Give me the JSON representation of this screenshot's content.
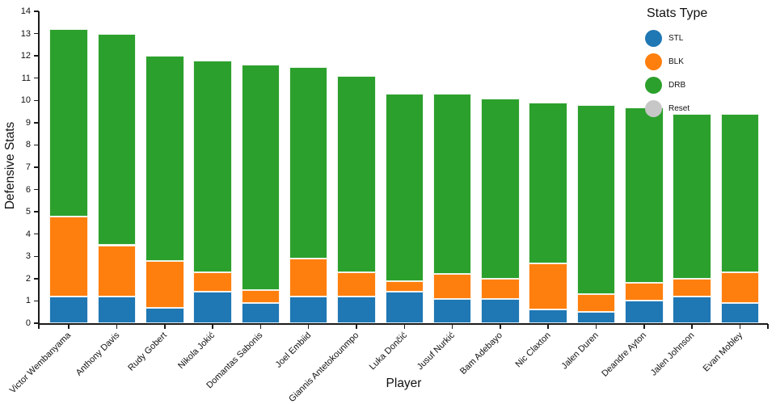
{
  "chart_data": {
    "type": "bar",
    "stacked": true,
    "title": "",
    "xlabel": "Player",
    "ylabel": "Defensive Stats",
    "ylim": [
      0,
      14
    ],
    "ytick_step": 1,
    "grid": false,
    "categories": [
      "Victor Wembanyama",
      "Anthony Davis",
      "Rudy Gobert",
      "Nikola Jokić",
      "Domantas Sabonis",
      "Joel Embiid",
      "Giannis Antetokounmpo",
      "Luka Dončić",
      "Jusuf Nurkić",
      "Bam Adebayo",
      "Nic Claxton",
      "Jalen Duren",
      "Deandre Ayton",
      "Jalen Johnson",
      "Evan Mobley"
    ],
    "series": [
      {
        "name": "STL",
        "color": "#1f77b4",
        "values": [
          1.2,
          1.2,
          0.7,
          1.4,
          0.9,
          1.2,
          1.2,
          1.4,
          1.1,
          1.1,
          0.6,
          0.5,
          1.0,
          1.2,
          0.9
        ]
      },
      {
        "name": "BLK",
        "color": "#ff7f0e",
        "values": [
          3.6,
          2.3,
          2.1,
          0.9,
          0.6,
          1.7,
          1.1,
          0.5,
          1.1,
          0.9,
          2.1,
          0.8,
          0.8,
          0.8,
          1.4
        ]
      },
      {
        "name": "DRB",
        "color": "#2ca02c",
        "values": [
          8.4,
          9.5,
          9.2,
          9.5,
          10.1,
          8.6,
          8.8,
          8.4,
          8.1,
          8.1,
          7.2,
          8.5,
          7.9,
          7.4,
          7.1
        ]
      }
    ],
    "totals": [
      13.2,
      13.0,
      12.0,
      11.8,
      11.6,
      11.5,
      11.1,
      10.3,
      10.3,
      10.1,
      9.9,
      9.8,
      9.7,
      9.4,
      9.4
    ],
    "legend": {
      "title": "Stats Type",
      "position": "top-right",
      "items": [
        {
          "label": "STL",
          "color": "#1f77b4"
        },
        {
          "label": "BLK",
          "color": "#ff7f0e"
        },
        {
          "label": "DRB",
          "color": "#2ca02c"
        },
        {
          "label": "Reset",
          "color": "#c7c7c7"
        }
      ]
    }
  }
}
